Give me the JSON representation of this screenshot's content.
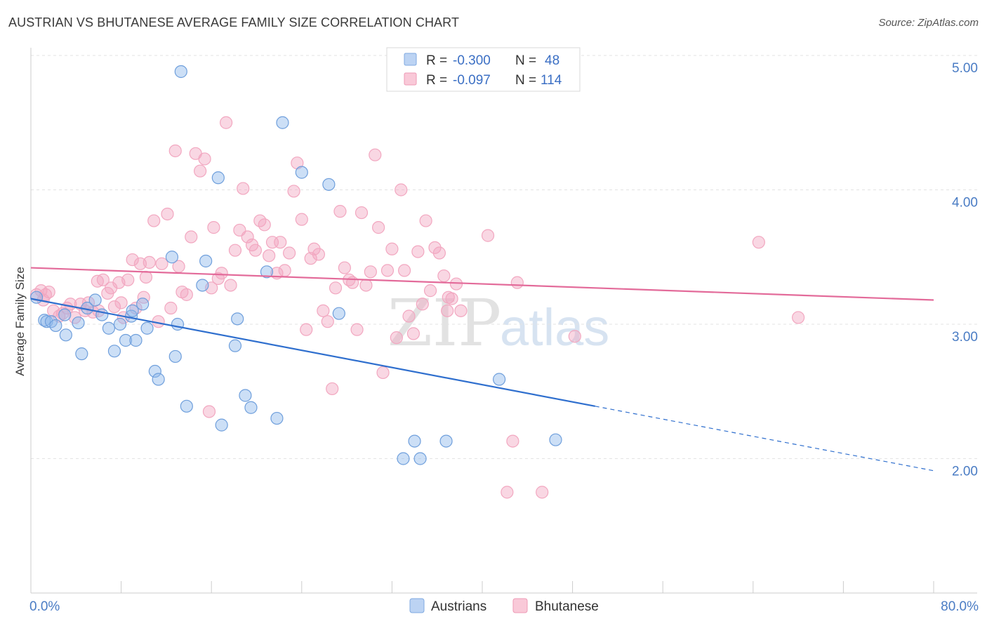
{
  "header": {
    "title": "AUSTRIAN VS BHUTANESE AVERAGE FAMILY SIZE CORRELATION CHART",
    "source": "Source: ZipAtlas.com"
  },
  "watermark": {
    "zip": "ZIP",
    "atlas": "atlas"
  },
  "legend_box": {
    "rows": [
      {
        "r_label": "R =",
        "r_value": "-0.300",
        "n_label": "N =",
        "n_value": "48",
        "color": "#8fb7ea"
      },
      {
        "r_label": "R =",
        "r_value": "-0.097",
        "n_label": "N =",
        "n_value": "114",
        "color": "#f2a7c0"
      }
    ]
  },
  "bottom_legend": {
    "austrians": "Austrians",
    "bhutanese": "Bhutanese"
  },
  "chart_data": {
    "type": "scatter",
    "title": "AUSTRIAN VS BHUTANESE AVERAGE FAMILY SIZE CORRELATION CHART",
    "xlabel": "",
    "ylabel": "Average Family Size",
    "xlim": [
      0,
      80
    ],
    "ylim": [
      1.0,
      5.0
    ],
    "x_tick_labels": [
      "0.0%",
      "80.0%"
    ],
    "y_ticks": [
      2.0,
      3.0,
      4.0,
      5.0
    ],
    "y_tick_labels": [
      "2.00",
      "3.00",
      "4.00",
      "5.00"
    ],
    "grid": "horizontal dashed",
    "legend_position": "top-center",
    "series": [
      {
        "name": "Austrians",
        "color": "#8fb7ea",
        "line_color": "#2f6fce",
        "r": -0.3,
        "n": 48,
        "trend": {
          "x": [
            0,
            50
          ],
          "y": [
            3.19,
            2.39
          ],
          "dashed_to": [
            80,
            1.91
          ]
        },
        "points": [
          [
            0.5,
            3.2
          ],
          [
            1.2,
            3.03
          ],
          [
            1.4,
            3.02
          ],
          [
            1.8,
            3.02
          ],
          [
            2.2,
            2.99
          ],
          [
            3.0,
            3.07
          ],
          [
            3.1,
            2.92
          ],
          [
            4.2,
            3.01
          ],
          [
            4.5,
            2.78
          ],
          [
            5.0,
            3.12
          ],
          [
            5.7,
            3.18
          ],
          [
            6.3,
            3.07
          ],
          [
            6.9,
            2.97
          ],
          [
            7.4,
            2.8
          ],
          [
            7.9,
            3.0
          ],
          [
            8.4,
            2.88
          ],
          [
            8.9,
            3.06
          ],
          [
            9.3,
            2.88
          ],
          [
            9.9,
            3.15
          ],
          [
            10.3,
            2.97
          ],
          [
            11.0,
            2.65
          ],
          [
            11.3,
            2.59
          ],
          [
            12.5,
            3.5
          ],
          [
            12.8,
            2.76
          ],
          [
            13.3,
            4.88
          ],
          [
            13.8,
            2.39
          ],
          [
            15.2,
            3.29
          ],
          [
            15.5,
            3.47
          ],
          [
            16.6,
            4.09
          ],
          [
            16.9,
            2.25
          ],
          [
            18.1,
            2.84
          ],
          [
            18.3,
            3.04
          ],
          [
            19.0,
            2.47
          ],
          [
            19.5,
            2.38
          ],
          [
            20.9,
            3.39
          ],
          [
            21.8,
            2.3
          ],
          [
            22.3,
            4.5
          ],
          [
            24.0,
            4.13
          ],
          [
            26.4,
            4.04
          ],
          [
            27.3,
            3.08
          ],
          [
            33.0,
            2.0
          ],
          [
            34.0,
            2.13
          ],
          [
            34.5,
            2.0
          ],
          [
            36.8,
            2.13
          ],
          [
            41.5,
            2.59
          ],
          [
            46.5,
            2.14
          ],
          [
            13.0,
            3.0
          ],
          [
            9.0,
            3.1
          ]
        ]
      },
      {
        "name": "Bhutanese",
        "color": "#f2a7c0",
        "line_color": "#e36b9a",
        "r": -0.097,
        "n": 114,
        "trend": {
          "x": [
            0,
            80
          ],
          "y": [
            3.42,
            3.18
          ]
        },
        "points": [
          [
            0.5,
            3.22
          ],
          [
            0.9,
            3.25
          ],
          [
            1.3,
            3.22
          ],
          [
            1.6,
            3.24
          ],
          [
            2.0,
            3.1
          ],
          [
            2.5,
            3.06
          ],
          [
            2.8,
            3.08
          ],
          [
            3.2,
            3.12
          ],
          [
            3.5,
            3.15
          ],
          [
            3.9,
            3.05
          ],
          [
            4.4,
            3.15
          ],
          [
            4.8,
            3.1
          ],
          [
            5.1,
            3.16
          ],
          [
            5.5,
            3.09
          ],
          [
            5.9,
            3.32
          ],
          [
            6.4,
            3.33
          ],
          [
            6.8,
            3.23
          ],
          [
            7.1,
            3.27
          ],
          [
            7.4,
            3.13
          ],
          [
            7.8,
            3.31
          ],
          [
            8.2,
            3.05
          ],
          [
            8.6,
            3.33
          ],
          [
            9.0,
            3.48
          ],
          [
            9.3,
            3.12
          ],
          [
            9.7,
            3.45
          ],
          [
            10.0,
            3.2
          ],
          [
            10.5,
            3.46
          ],
          [
            10.9,
            3.77
          ],
          [
            11.3,
            3.02
          ],
          [
            11.6,
            3.45
          ],
          [
            12.1,
            3.82
          ],
          [
            12.4,
            3.12
          ],
          [
            12.8,
            4.29
          ],
          [
            13.1,
            3.43
          ],
          [
            13.4,
            3.24
          ],
          [
            13.8,
            3.22
          ],
          [
            14.2,
            3.65
          ],
          [
            14.6,
            4.27
          ],
          [
            15.0,
            4.14
          ],
          [
            15.4,
            4.23
          ],
          [
            15.8,
            2.35
          ],
          [
            16.2,
            3.72
          ],
          [
            16.6,
            3.34
          ],
          [
            16.9,
            3.38
          ],
          [
            17.3,
            4.5
          ],
          [
            17.7,
            3.29
          ],
          [
            18.1,
            3.55
          ],
          [
            18.5,
            3.7
          ],
          [
            18.8,
            4.01
          ],
          [
            19.2,
            3.65
          ],
          [
            19.6,
            3.59
          ],
          [
            19.9,
            3.55
          ],
          [
            20.3,
            3.77
          ],
          [
            20.7,
            3.74
          ],
          [
            21.1,
            3.51
          ],
          [
            21.4,
            3.61
          ],
          [
            21.8,
            3.38
          ],
          [
            22.1,
            3.61
          ],
          [
            22.5,
            3.4
          ],
          [
            22.9,
            3.53
          ],
          [
            23.3,
            3.99
          ],
          [
            23.6,
            4.2
          ],
          [
            24.0,
            3.78
          ],
          [
            24.4,
            2.96
          ],
          [
            24.8,
            3.49
          ],
          [
            25.1,
            3.56
          ],
          [
            25.5,
            3.52
          ],
          [
            25.9,
            3.1
          ],
          [
            26.3,
            3.02
          ],
          [
            26.7,
            2.52
          ],
          [
            27.0,
            3.27
          ],
          [
            27.4,
            3.84
          ],
          [
            27.8,
            3.42
          ],
          [
            28.2,
            3.33
          ],
          [
            28.5,
            3.31
          ],
          [
            28.9,
            2.96
          ],
          [
            29.3,
            3.83
          ],
          [
            29.7,
            3.29
          ],
          [
            30.1,
            3.39
          ],
          [
            30.5,
            4.26
          ],
          [
            30.8,
            3.72
          ],
          [
            31.2,
            2.64
          ],
          [
            31.6,
            3.4
          ],
          [
            32.0,
            3.56
          ],
          [
            32.4,
            2.9
          ],
          [
            32.8,
            4.0
          ],
          [
            33.1,
            3.4
          ],
          [
            33.5,
            3.06
          ],
          [
            33.9,
            2.93
          ],
          [
            34.3,
            3.54
          ],
          [
            34.7,
            3.15
          ],
          [
            35.0,
            3.77
          ],
          [
            35.4,
            3.25
          ],
          [
            35.8,
            3.57
          ],
          [
            36.2,
            3.53
          ],
          [
            36.6,
            3.36
          ],
          [
            36.9,
            3.1
          ],
          [
            37.3,
            3.19
          ],
          [
            37.7,
            3.3
          ],
          [
            38.1,
            3.1
          ],
          [
            40.5,
            3.66
          ],
          [
            42.2,
            1.75
          ],
          [
            42.7,
            2.13
          ],
          [
            43.1,
            3.31
          ],
          [
            45.3,
            1.75
          ],
          [
            48.2,
            2.91
          ],
          [
            64.5,
            3.61
          ],
          [
            68.0,
            3.05
          ],
          [
            1.1,
            3.18
          ],
          [
            6.0,
            3.1
          ],
          [
            8.0,
            3.16
          ],
          [
            10.2,
            3.35
          ],
          [
            16.0,
            3.27
          ],
          [
            37.0,
            3.2
          ]
        ]
      }
    ]
  }
}
